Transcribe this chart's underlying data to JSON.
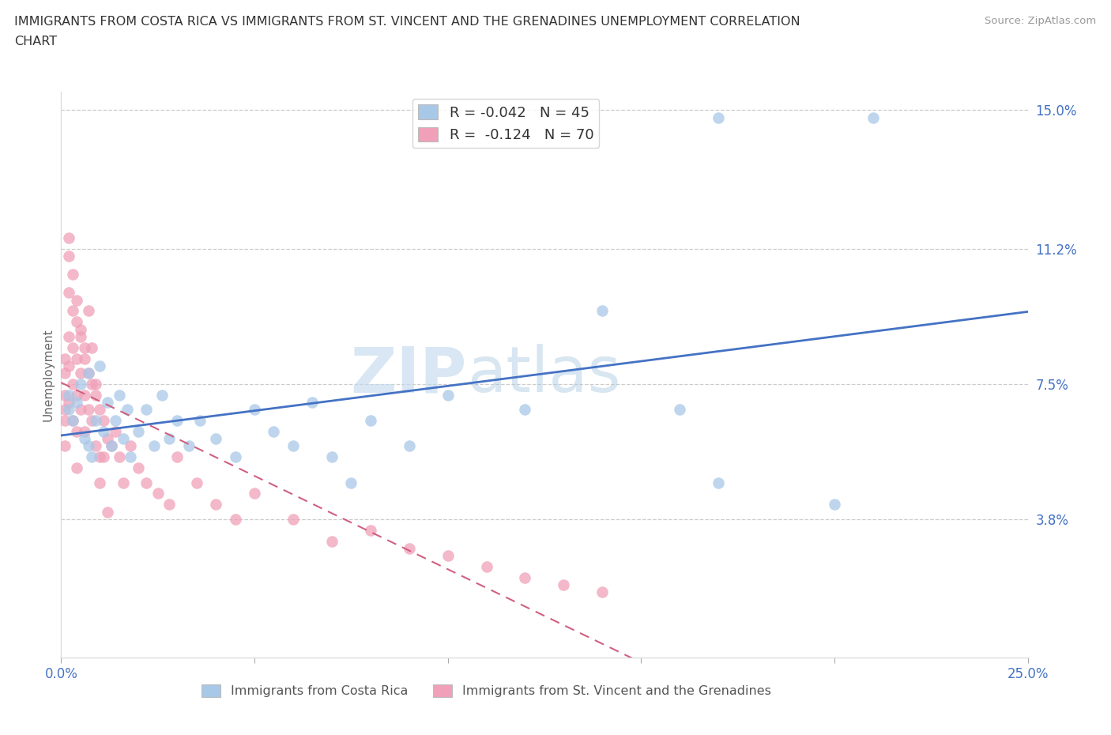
{
  "title_line1": "IMMIGRANTS FROM COSTA RICA VS IMMIGRANTS FROM ST. VINCENT AND THE GRENADINES UNEMPLOYMENT CORRELATION",
  "title_line2": "CHART",
  "source_text": "Source: ZipAtlas.com",
  "ylabel": "Unemployment",
  "xlim": [
    0.0,
    0.25
  ],
  "ylim": [
    0.0,
    0.155
  ],
  "ytick_vals": [
    0.15,
    0.112,
    0.075,
    0.038
  ],
  "ytick_labels": [
    "15.0%",
    "11.2%",
    "7.5%",
    "3.8%"
  ],
  "xtick_vals": [
    0.0,
    0.05,
    0.1,
    0.15,
    0.2,
    0.25
  ],
  "xtick_labels": [
    "0.0%",
    "",
    "",
    "",
    "",
    "25.0%"
  ],
  "costa_rica_color": "#a8c8e8",
  "stvincent_color": "#f0a0b8",
  "trendline_cr_color": "#4472C4",
  "trendline_sv_color": "#d06080",
  "r_cr": -0.042,
  "n_cr": 45,
  "r_sv": -0.124,
  "n_sv": 70,
  "watermark_zip": "ZIP",
  "watermark_atlas": "atlas",
  "legend_label_cr": "Immigrants from Costa Rica",
  "legend_label_sv": "Immigrants from St. Vincent and the Grenadines",
  "costa_rica_x": [
    0.002,
    0.002,
    0.003,
    0.004,
    0.005,
    0.006,
    0.007,
    0.007,
    0.008,
    0.009,
    0.01,
    0.011,
    0.012,
    0.013,
    0.014,
    0.015,
    0.016,
    0.017,
    0.018,
    0.02,
    0.022,
    0.024,
    0.026,
    0.028,
    0.03,
    0.033,
    0.036,
    0.04,
    0.045,
    0.05,
    0.055,
    0.06,
    0.065,
    0.07,
    0.075,
    0.08,
    0.09,
    0.1,
    0.12,
    0.14,
    0.16,
    0.17,
    0.2,
    0.17,
    0.21
  ],
  "costa_rica_y": [
    0.068,
    0.072,
    0.065,
    0.07,
    0.075,
    0.06,
    0.058,
    0.078,
    0.055,
    0.065,
    0.08,
    0.062,
    0.07,
    0.058,
    0.065,
    0.072,
    0.06,
    0.068,
    0.055,
    0.062,
    0.068,
    0.058,
    0.072,
    0.06,
    0.065,
    0.058,
    0.065,
    0.06,
    0.055,
    0.068,
    0.062,
    0.058,
    0.07,
    0.055,
    0.048,
    0.065,
    0.058,
    0.072,
    0.068,
    0.095,
    0.068,
    0.048,
    0.042,
    0.148,
    0.148
  ],
  "stvincent_x": [
    0.001,
    0.001,
    0.001,
    0.001,
    0.001,
    0.001,
    0.002,
    0.002,
    0.002,
    0.002,
    0.002,
    0.003,
    0.003,
    0.003,
    0.003,
    0.004,
    0.004,
    0.004,
    0.004,
    0.004,
    0.005,
    0.005,
    0.005,
    0.006,
    0.006,
    0.006,
    0.007,
    0.007,
    0.008,
    0.008,
    0.009,
    0.009,
    0.01,
    0.01,
    0.011,
    0.011,
    0.012,
    0.013,
    0.014,
    0.015,
    0.016,
    0.018,
    0.02,
    0.022,
    0.025,
    0.028,
    0.03,
    0.035,
    0.04,
    0.045,
    0.05,
    0.06,
    0.07,
    0.08,
    0.09,
    0.1,
    0.11,
    0.12,
    0.13,
    0.14,
    0.002,
    0.003,
    0.004,
    0.005,
    0.006,
    0.007,
    0.008,
    0.009,
    0.01,
    0.012
  ],
  "stvincent_y": [
    0.082,
    0.078,
    0.072,
    0.068,
    0.065,
    0.058,
    0.11,
    0.1,
    0.088,
    0.08,
    0.07,
    0.095,
    0.085,
    0.075,
    0.065,
    0.092,
    0.082,
    0.072,
    0.062,
    0.052,
    0.088,
    0.078,
    0.068,
    0.082,
    0.072,
    0.062,
    0.078,
    0.068,
    0.075,
    0.065,
    0.072,
    0.058,
    0.068,
    0.055,
    0.065,
    0.055,
    0.06,
    0.058,
    0.062,
    0.055,
    0.048,
    0.058,
    0.052,
    0.048,
    0.045,
    0.042,
    0.055,
    0.048,
    0.042,
    0.038,
    0.045,
    0.038,
    0.032,
    0.035,
    0.03,
    0.028,
    0.025,
    0.022,
    0.02,
    0.018,
    0.115,
    0.105,
    0.098,
    0.09,
    0.085,
    0.095,
    0.085,
    0.075,
    0.048,
    0.04
  ]
}
